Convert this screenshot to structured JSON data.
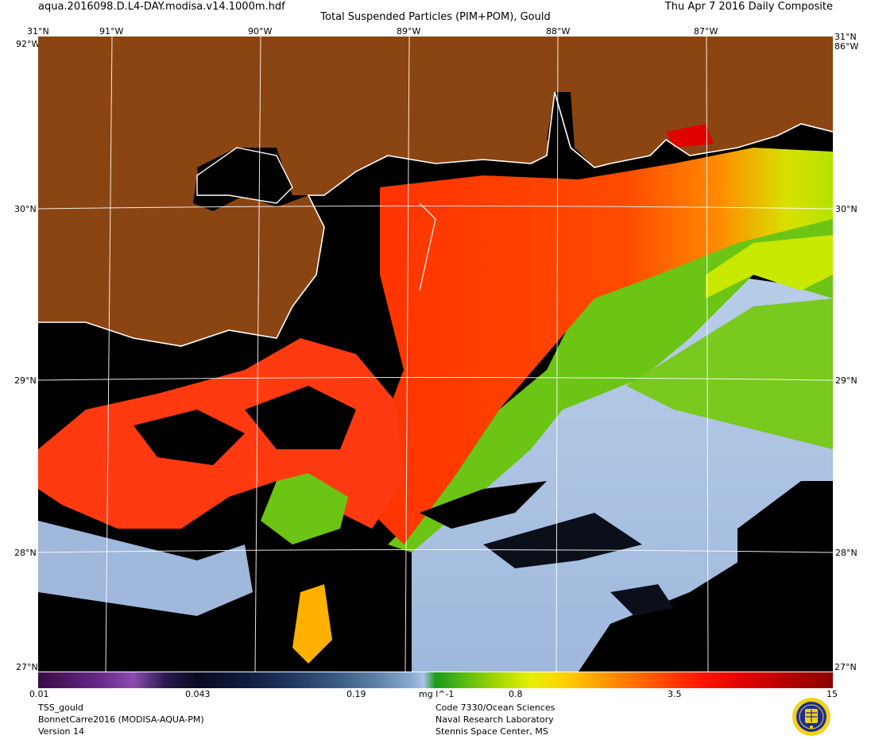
{
  "header": {
    "file_name": "aqua.2016098.D.L4-DAY.modisa.v14.1000m.hdf",
    "title": "Total Suspended Particles (PIM+POM), Gould",
    "date": "Thu Apr  7 2016 Daily Composite"
  },
  "axes": {
    "longitudes": [
      "91°W",
      "90°W",
      "89°W",
      "88°W",
      "87°W"
    ],
    "latitudes": [
      "30°N",
      "29°N",
      "28°N"
    ],
    "top_left_lat": "31°N",
    "top_right_lat": "31°N",
    "corner_lon_left": "92°W",
    "corner_lon_right": "86°W",
    "bottom_left_lat": "27°N",
    "bottom_right_lat": "27°N"
  },
  "colorbar": {
    "ticks": [
      "0.01",
      "0.043",
      "0.19",
      "0.8",
      "3.5",
      "15"
    ],
    "unit": "mg l^-1"
  },
  "footer": {
    "product": "TSS_gould",
    "region": "BonnetCarre2016 (MODISA-AQUA-PM)",
    "version": "Version 14",
    "org_line1": "Code 7330/Ocean Sciences",
    "org_line2": "Naval Research Laboratory",
    "org_line3": "Stennis Space Center, MS"
  },
  "colors": {
    "land": "#8b4513",
    "no_data": "#000000",
    "low": "#a9c4e6",
    "mid": "#5fbf10",
    "high": "#ff3a00"
  }
}
